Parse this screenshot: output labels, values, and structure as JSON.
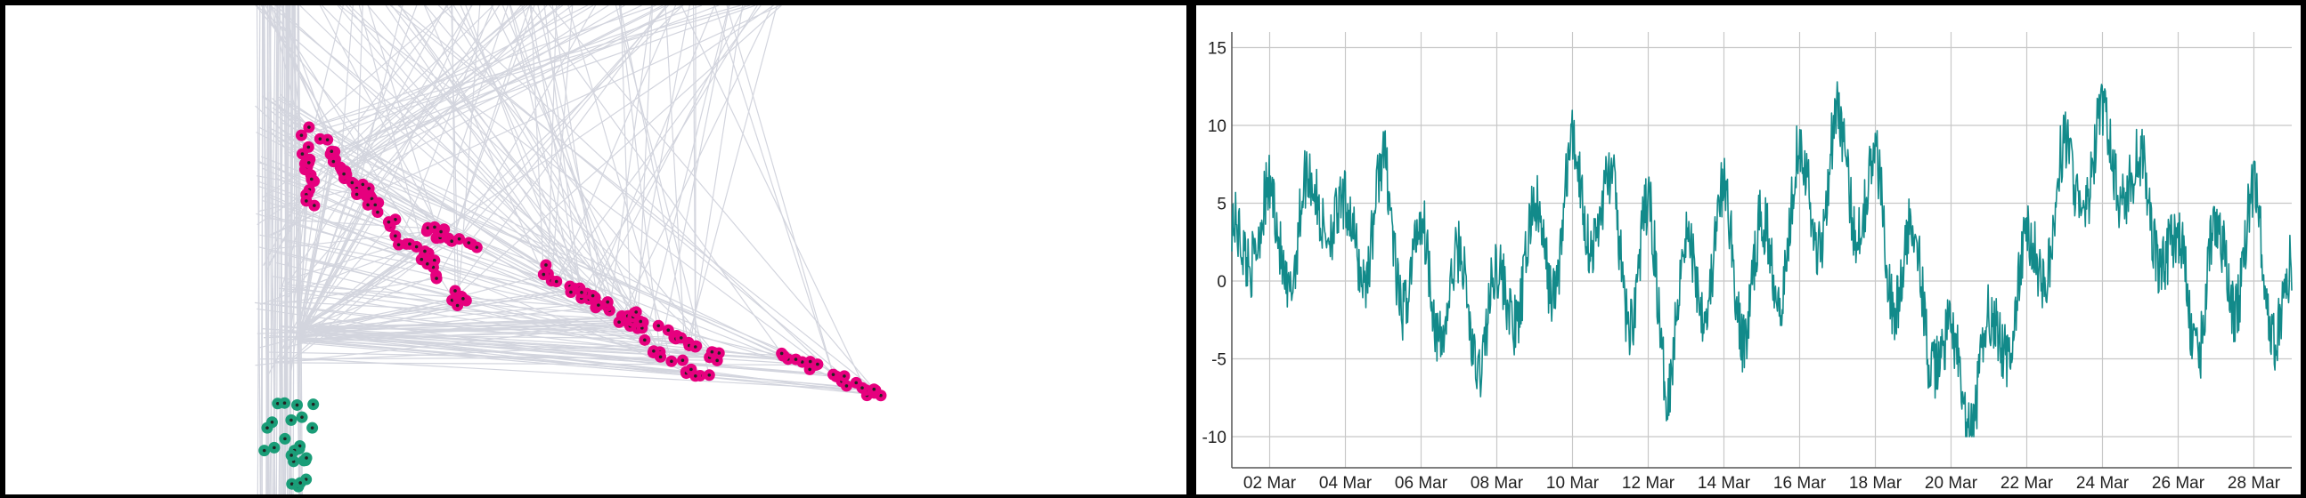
{
  "colors": {
    "background": "#000000",
    "panel": "#ffffff",
    "edge": "#d3d5de",
    "node_magenta": "#e6007e",
    "node_green": "#1a9d78",
    "node_core": "#222222",
    "series_line": "#128a8a",
    "grid": "#c8c8c8",
    "axis_text": "#222222"
  },
  "network_graph": {
    "node_groups": [
      {
        "color_key": "node_magenta",
        "count": 170
      },
      {
        "color_key": "node_green",
        "count": 24
      }
    ]
  },
  "chart_data": {
    "type": "line",
    "title": "",
    "xlabel": "",
    "ylabel": "",
    "x_range": [
      "2020-03-01",
      "2020-03-29"
    ],
    "ylim": [
      -12,
      16
    ],
    "grid": true,
    "legend": "none",
    "x_tick_labels": [
      "02 Mar",
      "04 Mar",
      "06 Mar",
      "08 Mar",
      "10 Mar",
      "12 Mar",
      "14 Mar",
      "16 Mar",
      "18 Mar",
      "20 Mar",
      "22 Mar",
      "24 Mar",
      "26 Mar",
      "28 Mar"
    ],
    "y_ticks": [
      -10,
      -5,
      0,
      5,
      10,
      15
    ],
    "y_tick_labels": [
      "-10",
      "-5",
      "0",
      "5",
      "10",
      "15"
    ],
    "series": [
      {
        "color_key": "series_line",
        "x": [
          "2020-03-01",
          "2020-03-01T12:00",
          "2020-03-02",
          "2020-03-02T12:00",
          "2020-03-03",
          "2020-03-03T12:00",
          "2020-03-04",
          "2020-03-04T12:00",
          "2020-03-05",
          "2020-03-05T12:00",
          "2020-03-06",
          "2020-03-06T12:00",
          "2020-03-07",
          "2020-03-07T12:00",
          "2020-03-08",
          "2020-03-08T12:00",
          "2020-03-09",
          "2020-03-09T12:00",
          "2020-03-10",
          "2020-03-10T12:00",
          "2020-03-11",
          "2020-03-11T12:00",
          "2020-03-12",
          "2020-03-12T12:00",
          "2020-03-13",
          "2020-03-13T12:00",
          "2020-03-14",
          "2020-03-14T12:00",
          "2020-03-15",
          "2020-03-15T12:00",
          "2020-03-16",
          "2020-03-16T12:00",
          "2020-03-17",
          "2020-03-17T12:00",
          "2020-03-18",
          "2020-03-18T12:00",
          "2020-03-19",
          "2020-03-19T12:00",
          "2020-03-20",
          "2020-03-20T12:00",
          "2020-03-21",
          "2020-03-21T12:00",
          "2020-03-22",
          "2020-03-22T12:00",
          "2020-03-23",
          "2020-03-23T12:00",
          "2020-03-24",
          "2020-03-24T12:00",
          "2020-03-25",
          "2020-03-25T12:00",
          "2020-03-26",
          "2020-03-26T12:00",
          "2020-03-27",
          "2020-03-27T12:00",
          "2020-03-28",
          "2020-03-28T12:00",
          "2020-03-29"
        ],
        "values": [
          4,
          1,
          6,
          -1,
          7,
          3,
          5,
          0,
          8,
          -2,
          4,
          -4,
          2,
          -6,
          1,
          -3,
          5,
          -1,
          9,
          2,
          7,
          -3,
          5,
          -7,
          3,
          -2,
          6,
          -4,
          4,
          -1,
          9,
          2,
          11,
          3,
          8,
          -2,
          4,
          -6,
          -3,
          -10,
          -2,
          -5,
          3,
          0,
          9,
          4,
          11,
          5,
          8,
          1,
          3,
          -5,
          4,
          -2,
          6,
          -4,
          1
        ]
      }
    ]
  }
}
